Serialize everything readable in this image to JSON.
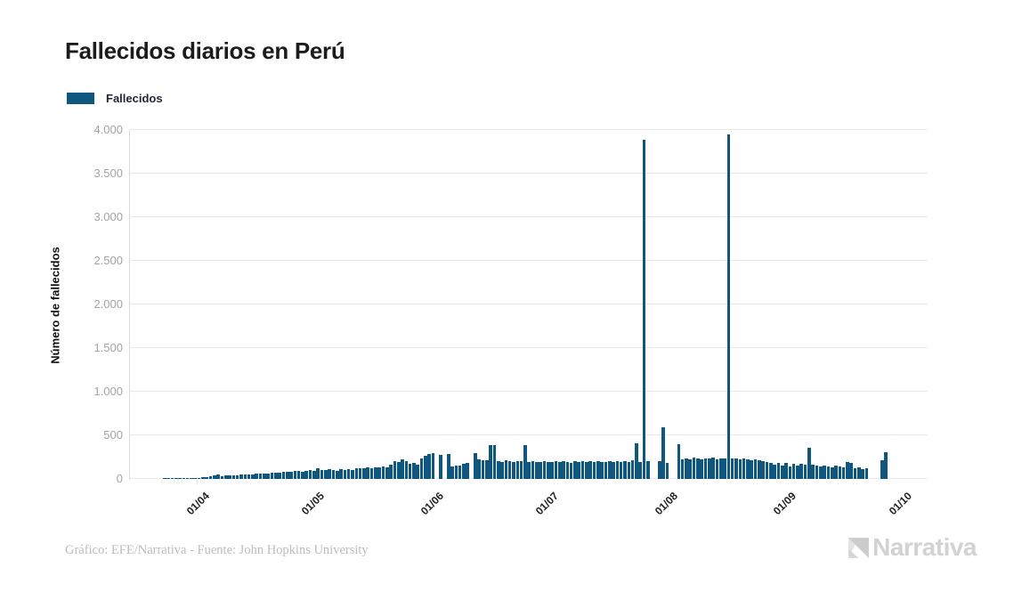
{
  "title": "Fallecidos diarios en Perú",
  "legend": {
    "label": "Fallecidos",
    "color": "#0f577e"
  },
  "footer": {
    "credit": "Gráfico: EFE/Narrativa - Fuente: John Hopkins University",
    "brand": "Narrativa"
  },
  "chart_data": {
    "type": "bar",
    "title": "Fallecidos diarios en Perú",
    "series_name": "Fallecidos",
    "bar_color": "#0f577e",
    "ylabel": "Número de fallecidos",
    "xlabel": "",
    "ylim": [
      0,
      4000
    ],
    "grid": true,
    "legend_position": "top-left",
    "y_tick_values": [
      0,
      500,
      1000,
      1500,
      2000,
      2500,
      3000,
      3500,
      4000
    ],
    "y_tick_labels": [
      "0",
      "500",
      "1.000",
      "1.500",
      "2.000",
      "2.500",
      "3.000",
      "3.500",
      "4.000"
    ],
    "x_tick_labels": [
      "01/04",
      "01/05",
      "01/06",
      "01/07",
      "01/08",
      "01/09",
      "01/10"
    ],
    "x_tick_day_indices": [
      10,
      40,
      71,
      101,
      132,
      163,
      193
    ],
    "start_date": "22/03/2020",
    "values": [
      3,
      4,
      5,
      6,
      5,
      8,
      9,
      11,
      13,
      15,
      20,
      24,
      28,
      45,
      48,
      35,
      38,
      42,
      40,
      44,
      48,
      52,
      47,
      55,
      58,
      62,
      57,
      65,
      70,
      75,
      68,
      80,
      84,
      78,
      88,
      92,
      85,
      96,
      100,
      94,
      122,
      105,
      98,
      110,
      102,
      96,
      108,
      100,
      112,
      105,
      118,
      125,
      118,
      130,
      122,
      135,
      128,
      140,
      132,
      160,
      200,
      190,
      220,
      205,
      170,
      180,
      165,
      235,
      268,
      288,
      292,
      0,
      275,
      0,
      290,
      148,
      155,
      150,
      178,
      185,
      0,
      300,
      225,
      218,
      212,
      390,
      385,
      205,
      198,
      210,
      202,
      195,
      208,
      200,
      385,
      195,
      205,
      198,
      192,
      205,
      198,
      195,
      200,
      192,
      205,
      198,
      188,
      202,
      195,
      205,
      190,
      200,
      196,
      208,
      192,
      198,
      205,
      190,
      202,
      195,
      200,
      193,
      218,
      408,
      195,
      3890,
      200,
      0,
      0,
      205,
      590,
      185,
      0,
      0,
      400,
      225,
      235,
      228,
      240,
      232,
      225,
      238,
      230,
      242,
      228,
      235,
      230,
      3945,
      238,
      230,
      225,
      232,
      220,
      215,
      225,
      210,
      205,
      195,
      185,
      165,
      185,
      150,
      180,
      140,
      170,
      155,
      175,
      160,
      355,
      165,
      150,
      140,
      155,
      148,
      135,
      150,
      142,
      130,
      190,
      185,
      125,
      135,
      110,
      120,
      0,
      0,
      0,
      215,
      310
    ]
  }
}
